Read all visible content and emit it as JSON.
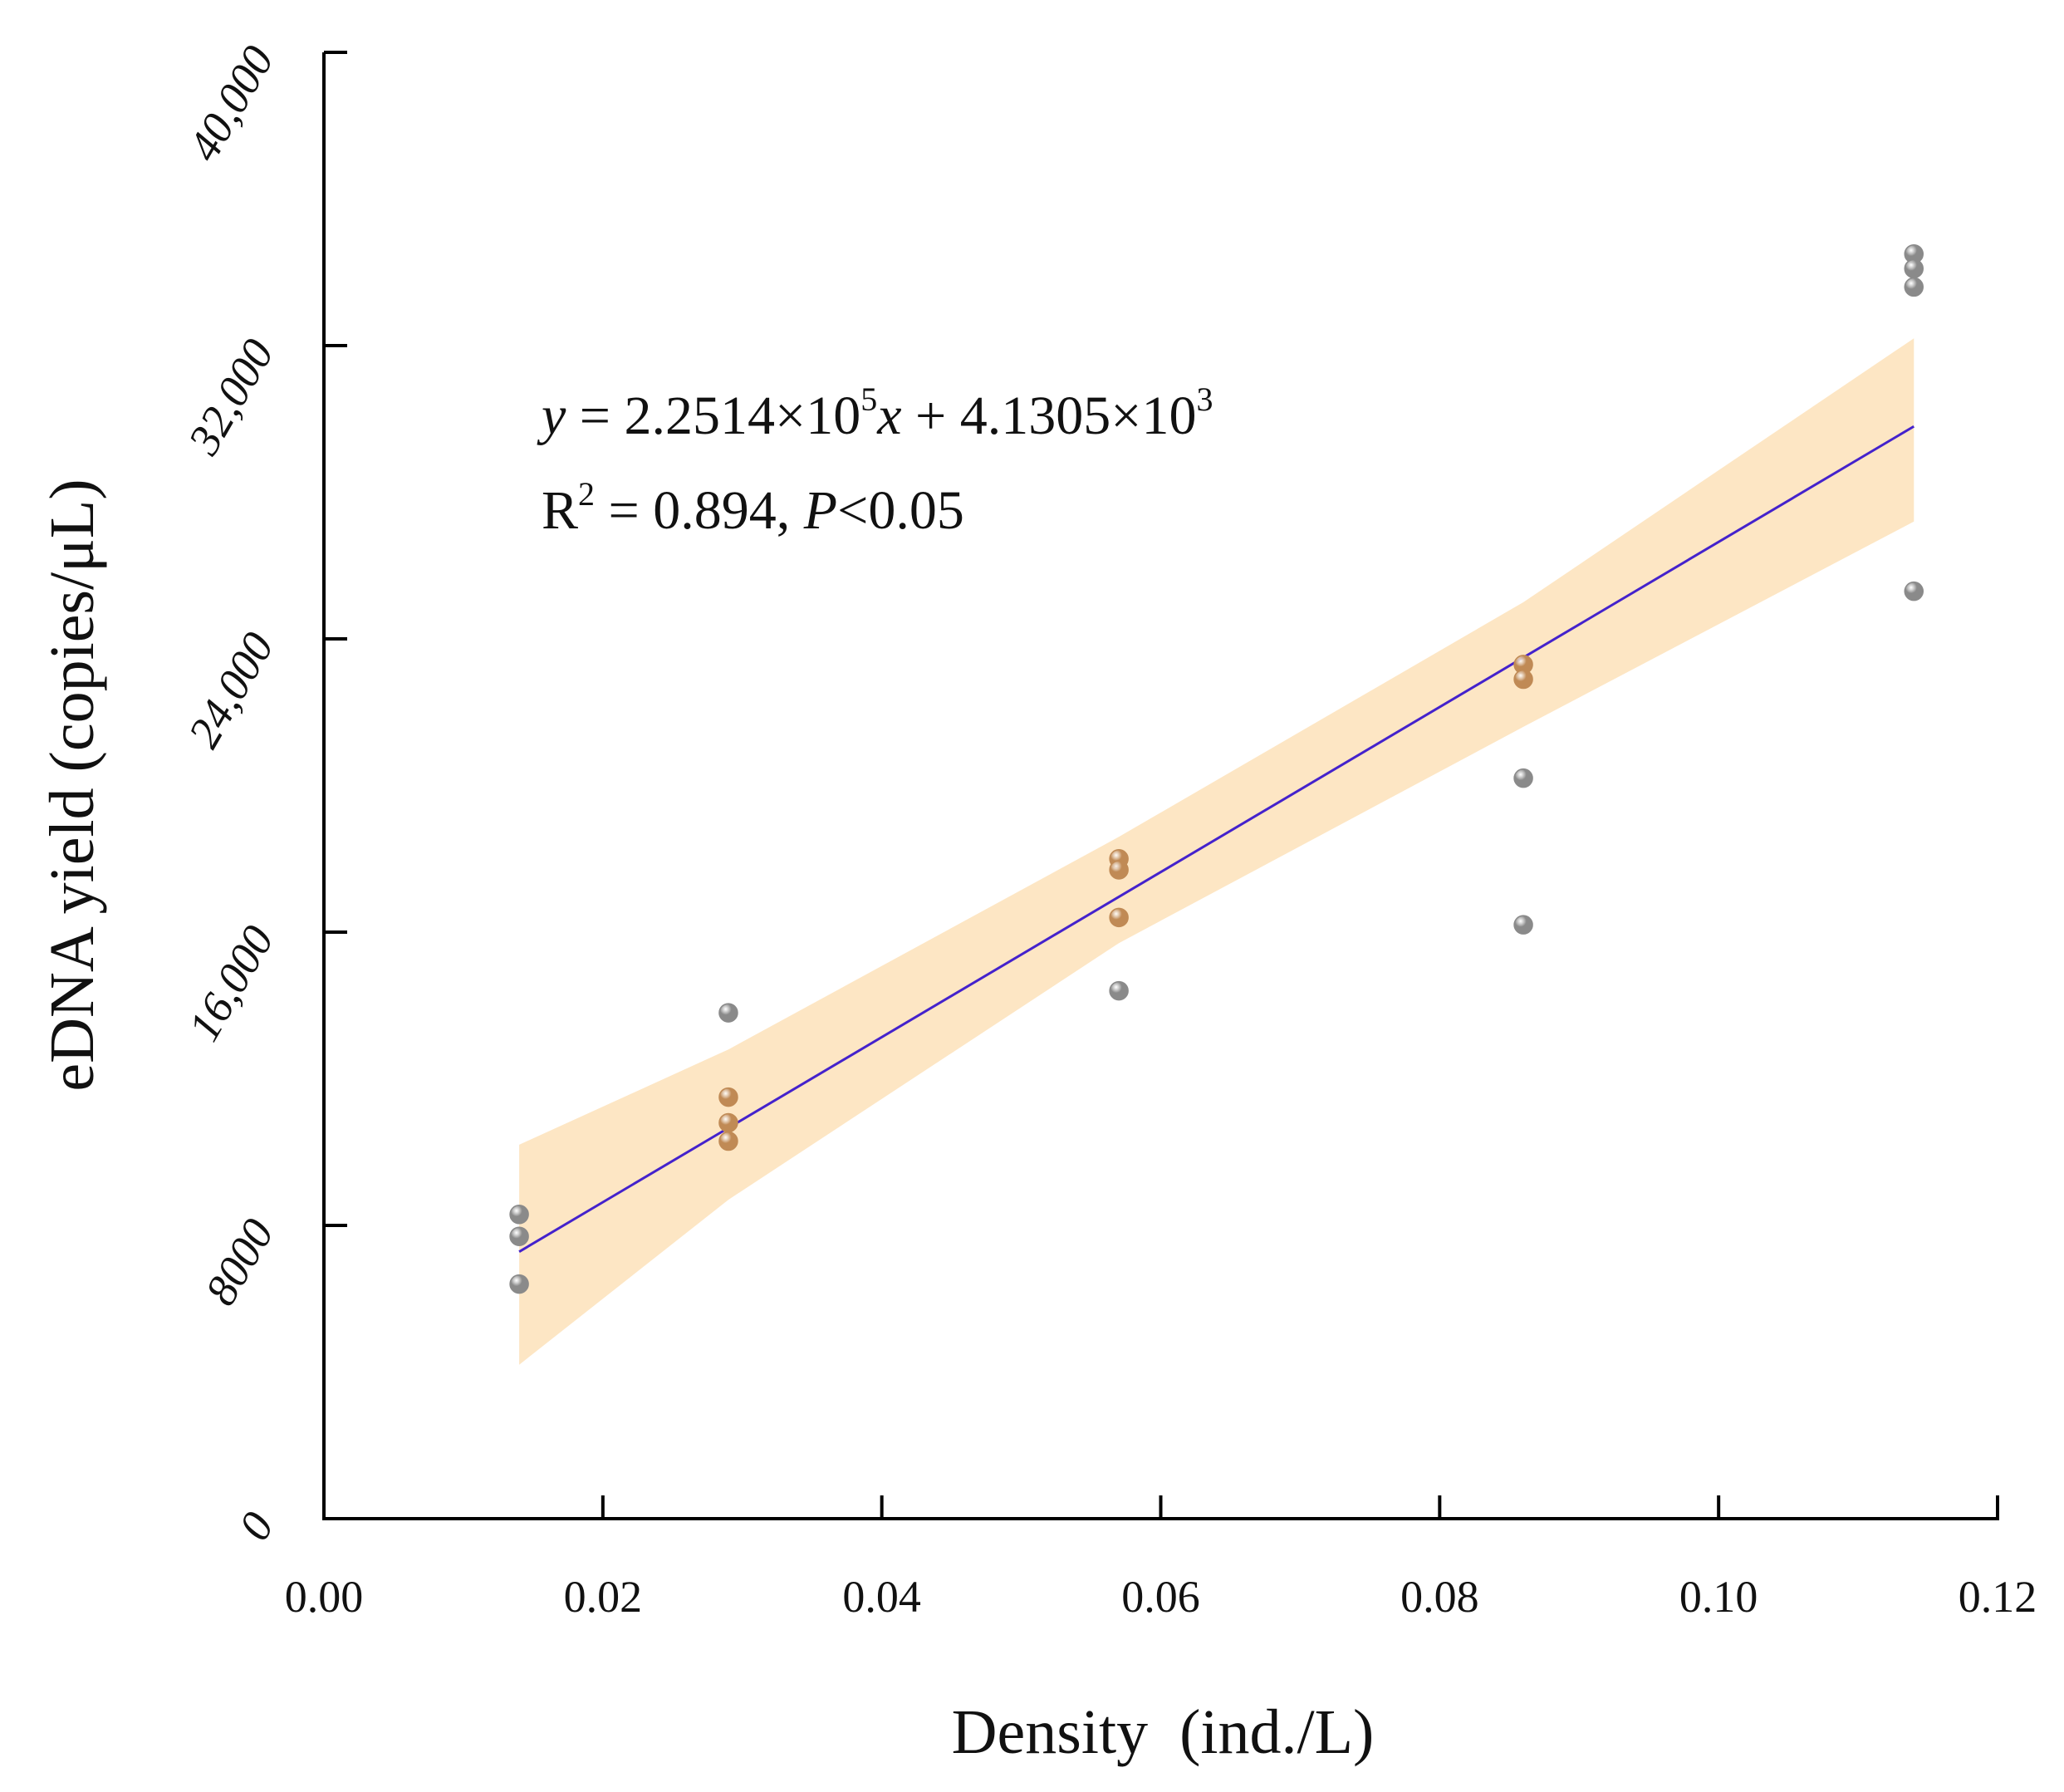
{
  "chart_data": {
    "type": "scatter",
    "title": "",
    "xlabel": "Density  (ind./L)",
    "ylabel": "eDNA yield (copies/μL)",
    "xlim": [
      0.0,
      0.12
    ],
    "ylim": [
      0,
      40000
    ],
    "x_ticks": [
      0.0,
      0.02,
      0.04,
      0.06,
      0.08,
      0.1,
      0.12
    ],
    "x_tick_labels": [
      "0.00",
      "0.02",
      "0.04",
      "0.06",
      "0.08",
      "0.10",
      "0.12"
    ],
    "y_ticks": [
      0,
      8000,
      16000,
      24000,
      32000,
      40000
    ],
    "y_tick_labels": [
      "0",
      "8000",
      "16,000",
      "24,000",
      "32,000",
      "40,000"
    ],
    "grid": false,
    "series": [
      {
        "name": "gray-points",
        "color": "#8a8a8a",
        "points": [
          {
            "x": 0.014,
            "y": 8300
          },
          {
            "x": 0.014,
            "y": 7700
          },
          {
            "x": 0.014,
            "y": 6400
          },
          {
            "x": 0.029,
            "y": 13800
          },
          {
            "x": 0.057,
            "y": 14400
          },
          {
            "x": 0.086,
            "y": 20200
          },
          {
            "x": 0.086,
            "y": 16200
          },
          {
            "x": 0.114,
            "y": 34500
          },
          {
            "x": 0.114,
            "y": 34100
          },
          {
            "x": 0.114,
            "y": 33600
          },
          {
            "x": 0.114,
            "y": 25300
          }
        ]
      },
      {
        "name": "brown-points",
        "color": "#c08a55",
        "points": [
          {
            "x": 0.029,
            "y": 11500
          },
          {
            "x": 0.029,
            "y": 10800
          },
          {
            "x": 0.029,
            "y": 10300
          },
          {
            "x": 0.057,
            "y": 18000
          },
          {
            "x": 0.057,
            "y": 17700
          },
          {
            "x": 0.057,
            "y": 16400
          },
          {
            "x": 0.086,
            "y": 23300
          },
          {
            "x": 0.086,
            "y": 22900
          }
        ]
      }
    ],
    "fit_line": {
      "slope": 225140,
      "intercept": 4130.5,
      "x_range": [
        0.014,
        0.114
      ],
      "color": "#4422cc"
    },
    "confidence_band": {
      "color": "#fde6c4",
      "points": [
        {
          "x": 0.014,
          "lower": 4200,
          "upper": 10200
        },
        {
          "x": 0.029,
          "lower": 8700,
          "upper": 12800
        },
        {
          "x": 0.057,
          "lower": 15700,
          "upper": 18600
        },
        {
          "x": 0.086,
          "lower": 21600,
          "upper": 25000
        },
        {
          "x": 0.114,
          "lower": 27200,
          "upper": 32200
        }
      ]
    },
    "annotation": {
      "equation": {
        "y": "y",
        "mid": " = 2.2514×10",
        "exp1": "5",
        "x": "x",
        "mid2": " + 4.1305×10",
        "exp2": "3"
      },
      "r2": {
        "r": "R",
        "exp": "2",
        "value": " = 0.894, ",
        "p": "P",
        "sig": "<0.05"
      }
    }
  }
}
